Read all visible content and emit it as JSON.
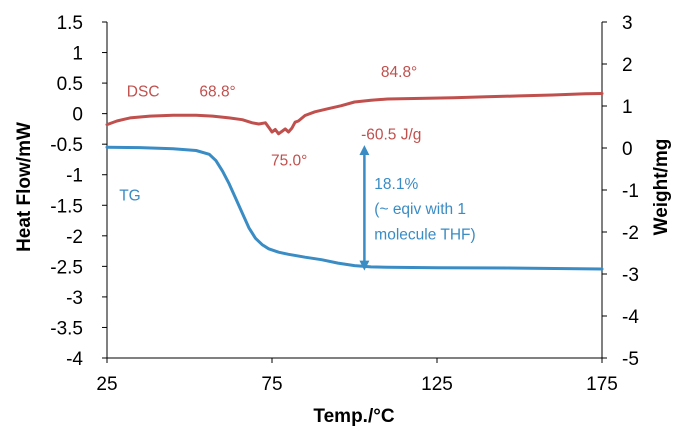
{
  "chart_data": {
    "type": "line",
    "xlabel": "Temp./°C",
    "ylabel": "Heat Flow/mW",
    "y2label": "Weight/mg",
    "xlim": [
      25,
      175
    ],
    "ylim": [
      -4,
      1.5
    ],
    "y2lim": [
      -5,
      3
    ],
    "x_ticks": [
      "25",
      "75",
      "125",
      "175"
    ],
    "y_ticks": [
      "1.5",
      "1",
      "0.5",
      "0",
      "-0.5",
      "-1",
      "-1.5",
      "-2",
      "-2.5",
      "-3",
      "-3.5",
      "-4"
    ],
    "y2_ticks": [
      "3",
      "2",
      "1",
      "0",
      "-1",
      "-2",
      "-3",
      "-4",
      "-5"
    ],
    "grid": false,
    "series": [
      {
        "name": "DSC",
        "axis": "left",
        "color": "#c0504d",
        "points": [
          [
            25,
            -0.18
          ],
          [
            28,
            -0.12
          ],
          [
            32,
            -0.07
          ],
          [
            38,
            -0.04
          ],
          [
            45,
            -0.025
          ],
          [
            52,
            -0.025
          ],
          [
            57,
            -0.04
          ],
          [
            62,
            -0.07
          ],
          [
            66,
            -0.1
          ],
          [
            69,
            -0.15
          ],
          [
            71,
            -0.17
          ],
          [
            73,
            -0.15
          ],
          [
            74.2,
            -0.24
          ],
          [
            75,
            -0.3
          ],
          [
            76,
            -0.26
          ],
          [
            77,
            -0.33
          ],
          [
            78,
            -0.29
          ],
          [
            79,
            -0.25
          ],
          [
            80,
            -0.3
          ],
          [
            81,
            -0.24
          ],
          [
            82,
            -0.14
          ],
          [
            83,
            -0.12
          ],
          [
            85,
            -0.03
          ],
          [
            88,
            0.03
          ],
          [
            92,
            0.08
          ],
          [
            96,
            0.13
          ],
          [
            100,
            0.19
          ],
          [
            105,
            0.22
          ],
          [
            110,
            0.24
          ],
          [
            120,
            0.25
          ],
          [
            130,
            0.26
          ],
          [
            140,
            0.275
          ],
          [
            150,
            0.29
          ],
          [
            160,
            0.305
          ],
          [
            170,
            0.325
          ],
          [
            175,
            0.33
          ]
        ]
      },
      {
        "name": "TG",
        "axis": "right",
        "color": "#3a8cc4",
        "points": [
          [
            25,
            0.02
          ],
          [
            35,
            0.01
          ],
          [
            45,
            -0.02
          ],
          [
            52,
            -0.06
          ],
          [
            56,
            -0.15
          ],
          [
            58,
            -0.3
          ],
          [
            60,
            -0.55
          ],
          [
            62,
            -0.85
          ],
          [
            64,
            -1.2
          ],
          [
            66,
            -1.55
          ],
          [
            68,
            -1.9
          ],
          [
            70,
            -2.15
          ],
          [
            72,
            -2.3
          ],
          [
            74,
            -2.4
          ],
          [
            77,
            -2.48
          ],
          [
            80,
            -2.53
          ],
          [
            85,
            -2.6
          ],
          [
            90,
            -2.66
          ],
          [
            95,
            -2.74
          ],
          [
            100,
            -2.8
          ],
          [
            105,
            -2.83
          ],
          [
            110,
            -2.84
          ],
          [
            125,
            -2.85
          ],
          [
            150,
            -2.86
          ],
          [
            175,
            -2.88
          ]
        ]
      }
    ],
    "annotations": [
      {
        "text": "DSC",
        "color": "#c0504d",
        "x": 31,
        "y": 0.28,
        "axis": "left"
      },
      {
        "text": "68.8°",
        "color": "#c0504d",
        "x": 53,
        "y": 0.28,
        "axis": "left"
      },
      {
        "text": "84.8°",
        "color": "#c0504d",
        "x": 108,
        "y": 0.6,
        "axis": "left"
      },
      {
        "text": "75.0°",
        "color": "#c0504d",
        "x": 74.7,
        "y": -0.85,
        "axis": "left"
      },
      {
        "text": "-60.5 J/g",
        "color": "#c0504d",
        "x": 102,
        "y": -0.42,
        "axis": "left"
      },
      {
        "text": "TG",
        "color": "#3a8cc4",
        "x": 28.7,
        "y": -1.42,
        "axis": "left"
      },
      {
        "text": "18.1%",
        "color": "#3a8cc4",
        "x": 106,
        "y": -1.23,
        "axis": "left"
      },
      {
        "text": "(~ eqiv with 1",
        "color": "#3a8cc4",
        "x": 106,
        "y": -1.64,
        "axis": "left"
      },
      {
        "text": "molecule THF)",
        "color": "#3a8cc4",
        "x": 106,
        "y": -2.06,
        "axis": "left"
      }
    ],
    "arrows": [
      {
        "name": "weight-loss",
        "color": "#3a8cc4",
        "x": 103,
        "from_y": -0.05,
        "to_y": -2.8,
        "axis": "right"
      }
    ]
  }
}
